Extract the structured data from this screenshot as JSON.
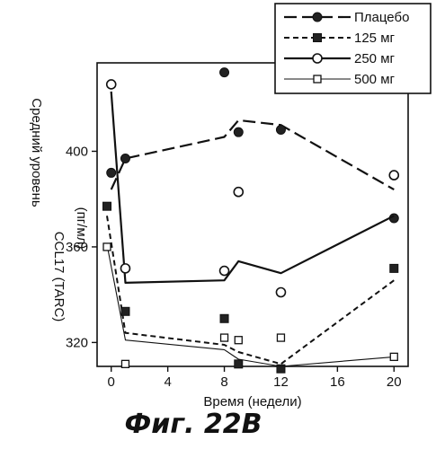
{
  "chart_data": {
    "type": "line",
    "xlabel": "Время (недели)",
    "ylabel_lines": [
      "Средний уровень",
      "CCL17 (TARC)",
      "(пг/мл)"
    ],
    "xticks": [
      0,
      4,
      8,
      12,
      16,
      20
    ],
    "yticks": [
      320,
      360,
      400
    ],
    "xlim": [
      -1,
      21
    ],
    "ylim": [
      310,
      437
    ],
    "legend_position": "top-right",
    "grid": false,
    "series": [
      {
        "name": "Плацебо",
        "style": "long-dash",
        "marker": "filled-circle",
        "line": {
          "x": [
            0,
            1,
            8,
            9,
            12,
            20
          ],
          "y": [
            384,
            397,
            406,
            413,
            411,
            384
          ]
        },
        "points": {
          "x": [
            0,
            1,
            8,
            9,
            12,
            20
          ],
          "y": [
            391,
            397,
            433,
            408,
            409,
            372
          ]
        }
      },
      {
        "name": "125 мг",
        "style": "dashed",
        "marker": "filled-square",
        "line": {
          "x": [
            -0.3,
            1,
            8,
            9,
            12,
            20
          ],
          "y": [
            373,
            324,
            319,
            316,
            311,
            346
          ]
        },
        "points": {
          "x": [
            -0.3,
            1,
            8,
            9,
            12,
            20
          ],
          "y": [
            377,
            333,
            330,
            311,
            309,
            351
          ]
        }
      },
      {
        "name": "250 мг",
        "style": "solid",
        "marker": "open-circle",
        "line": {
          "x": [
            0,
            1,
            8,
            9,
            12,
            20
          ],
          "y": [
            425,
            345,
            346,
            354,
            349,
            373
          ]
        },
        "points": {
          "x": [
            0,
            1,
            8,
            9,
            12,
            20
          ],
          "y": [
            428,
            351,
            350,
            383,
            341,
            390
          ]
        }
      },
      {
        "name": "500 мг",
        "style": "thin-solid",
        "marker": "open-square",
        "line": {
          "x": [
            -0.3,
            1,
            8,
            9,
            12,
            20
          ],
          "y": [
            361,
            321,
            317,
            313,
            310,
            314
          ]
        },
        "points": {
          "x": [
            -0.3,
            1,
            8,
            9,
            12,
            20
          ],
          "y": [
            360,
            311,
            322,
            321,
            322,
            314
          ]
        }
      }
    ]
  },
  "caption": "Фиг. 22B"
}
